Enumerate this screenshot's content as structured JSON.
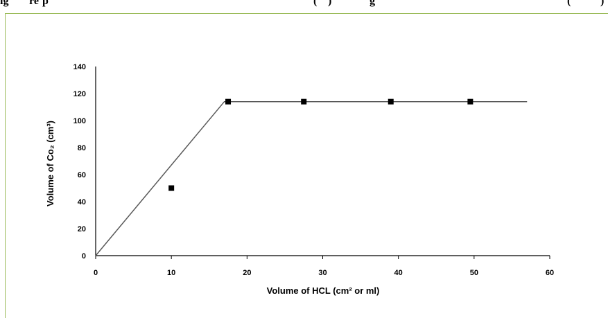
{
  "caption": {
    "part1": "ig",
    "part2": "re",
    "part3": "p",
    "part4": "(",
    "part5": ")",
    "part6": "",
    "part7": "g",
    "part8": "(",
    "part9": ")"
  },
  "colors": {
    "frame": "#9bbb59",
    "line": "#595959",
    "marker": "#000000"
  },
  "chart_data": {
    "type": "scatter",
    "title": "",
    "xlabel": "Volume of HCL (cm² or ml)",
    "ylabel": "Volume of Co₂ (cm³)",
    "xlim": [
      0,
      60
    ],
    "ylim": [
      0,
      140
    ],
    "x_ticks": [
      "0",
      "10",
      "20",
      "30",
      "40",
      "50",
      "60"
    ],
    "y_ticks": [
      "0",
      "20",
      "40",
      "60",
      "80",
      "100",
      "120",
      "140"
    ],
    "points": [
      {
        "x": 10,
        "y": 50
      },
      {
        "x": 17.5,
        "y": 114
      },
      {
        "x": 27.5,
        "y": 114
      },
      {
        "x": 39,
        "y": 114
      },
      {
        "x": 49.5,
        "y": 114
      }
    ],
    "fit_line": [
      {
        "x": 0,
        "y": 0
      },
      {
        "x": 17,
        "y": 114
      },
      {
        "x": 57,
        "y": 114
      }
    ],
    "grid": false,
    "legend": "none"
  }
}
